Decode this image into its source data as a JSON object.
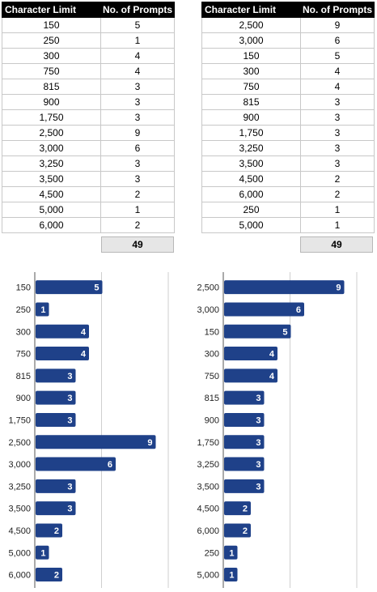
{
  "colors": {
    "bar": "#1f4189",
    "header_bg": "#000000",
    "total_bg": "#e6e6e6"
  },
  "tables": [
    {
      "headers": [
        "Character Limit",
        "No. of Prompts"
      ],
      "rows": [
        [
          "150",
          "5"
        ],
        [
          "250",
          "1"
        ],
        [
          "300",
          "4"
        ],
        [
          "750",
          "4"
        ],
        [
          "815",
          "3"
        ],
        [
          "900",
          "3"
        ],
        [
          "1,750",
          "3"
        ],
        [
          "2,500",
          "9"
        ],
        [
          "3,000",
          "6"
        ],
        [
          "3,250",
          "3"
        ],
        [
          "3,500",
          "3"
        ],
        [
          "4,500",
          "2"
        ],
        [
          "5,000",
          "1"
        ],
        [
          "6,000",
          "2"
        ]
      ],
      "total": "49"
    },
    {
      "headers": [
        "Character Limit",
        "No. of Prompts"
      ],
      "rows": [
        [
          "2,500",
          "9"
        ],
        [
          "3,000",
          "6"
        ],
        [
          "150",
          "5"
        ],
        [
          "300",
          "4"
        ],
        [
          "750",
          "4"
        ],
        [
          "815",
          "3"
        ],
        [
          "900",
          "3"
        ],
        [
          "1,750",
          "3"
        ],
        [
          "3,250",
          "3"
        ],
        [
          "3,500",
          "3"
        ],
        [
          "4,500",
          "2"
        ],
        [
          "6,000",
          "2"
        ],
        [
          "250",
          "1"
        ],
        [
          "5,000",
          "1"
        ]
      ],
      "total": "49"
    }
  ],
  "chart_data": [
    {
      "type": "bar",
      "orientation": "horizontal",
      "categories": [
        "150",
        "250",
        "300",
        "750",
        "815",
        "900",
        "1,750",
        "2,500",
        "3,000",
        "3,250",
        "3,500",
        "4,500",
        "5,000",
        "6,000"
      ],
      "values": [
        5,
        1,
        4,
        4,
        3,
        3,
        3,
        9,
        6,
        3,
        3,
        2,
        1,
        2
      ],
      "xlim": [
        0,
        15
      ],
      "grid": true,
      "data_labels": true
    },
    {
      "type": "bar",
      "orientation": "horizontal",
      "categories": [
        "2,500",
        "3,000",
        "150",
        "300",
        "750",
        "815",
        "900",
        "1,750",
        "3,250",
        "3,500",
        "4,500",
        "6,000",
        "250",
        "5,000"
      ],
      "values": [
        9,
        6,
        5,
        4,
        4,
        3,
        3,
        3,
        3,
        3,
        2,
        2,
        1,
        1
      ],
      "xlim": [
        0,
        15
      ],
      "grid": true,
      "data_labels": true
    }
  ]
}
